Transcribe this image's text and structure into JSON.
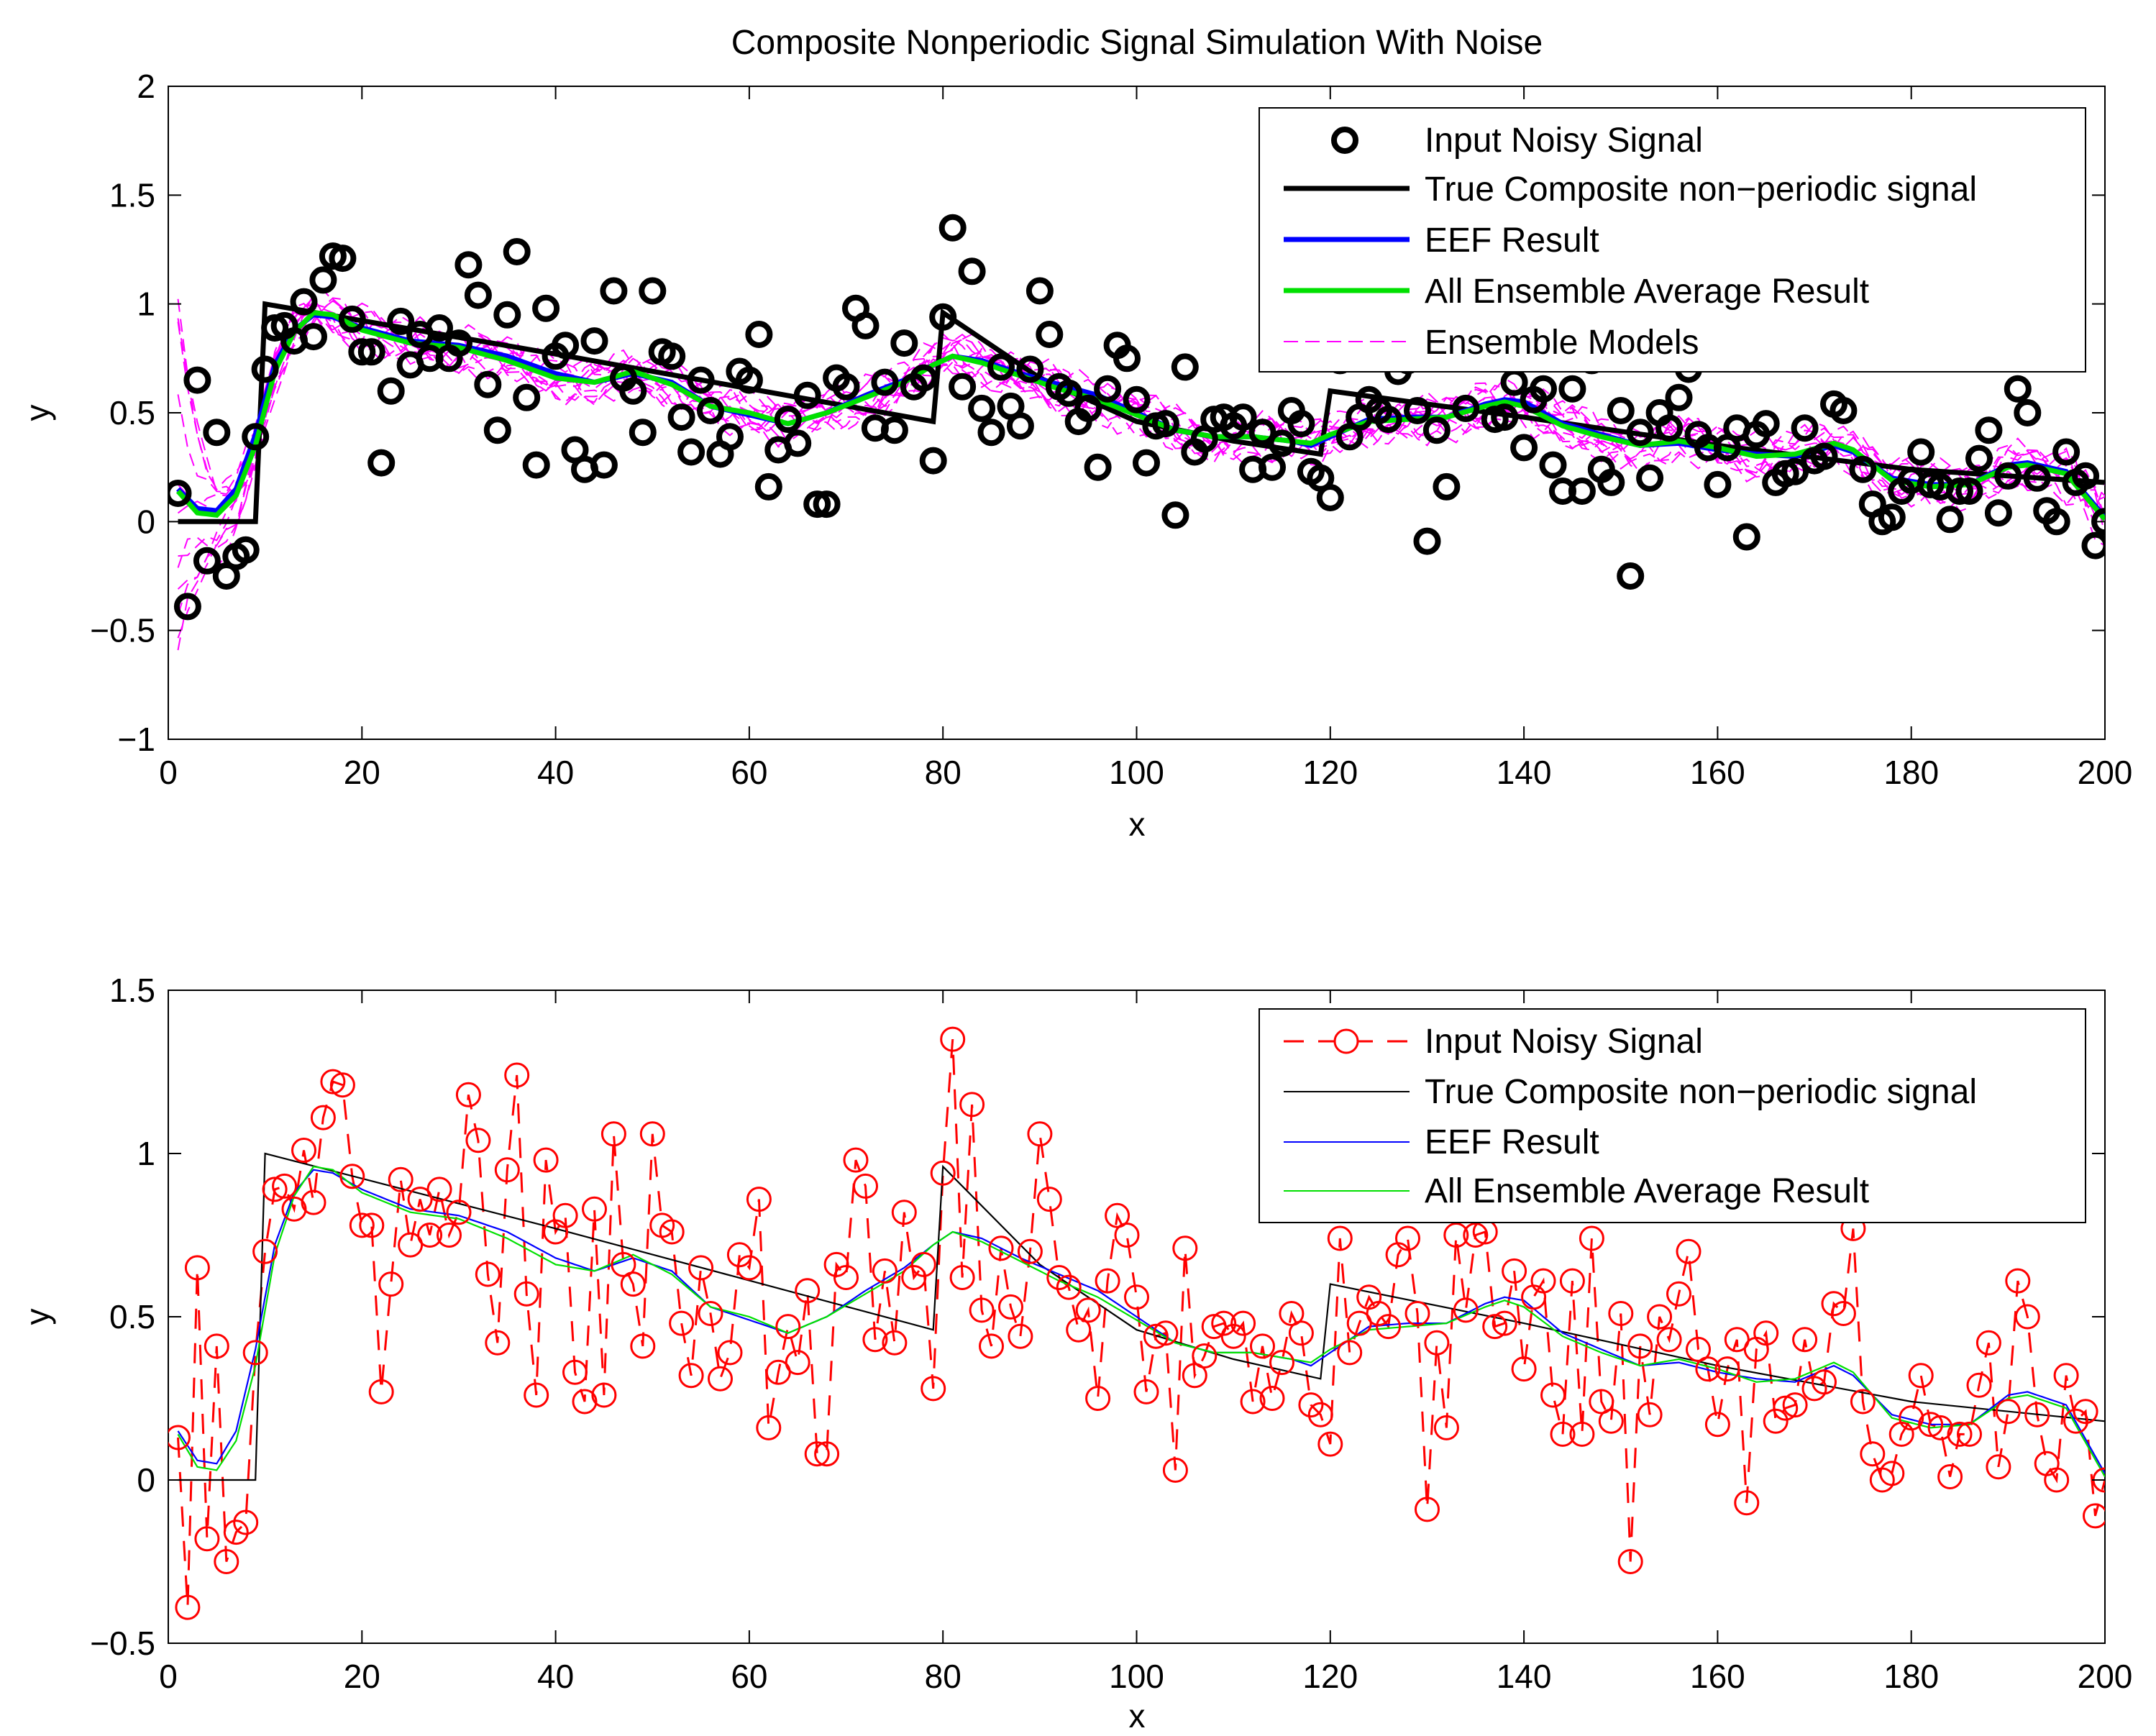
{
  "chart_data": [
    {
      "type": "line",
      "title": "Composite Nonperiodic Signal Simulation With Noise",
      "xlabel": "x",
      "ylabel": "y",
      "xlim": [
        0,
        200
      ],
      "ylim": [
        -1,
        2
      ],
      "xticks": [
        0,
        20,
        40,
        60,
        80,
        100,
        120,
        140,
        160,
        180,
        200
      ],
      "yticks": [
        -1,
        -0.5,
        0,
        0.5,
        1,
        1.5,
        2
      ],
      "ytick_labels": [
        "−1",
        "−0.5",
        "0",
        "0.5",
        "1",
        "1.5",
        "2"
      ],
      "grid": false,
      "legend_position": "top-right",
      "legend": [
        "Input Noisy Signal",
        "True Composite non−periodic signal",
        "EEF Result",
        "All Ensemble Average Result",
        "Ensemble Models"
      ],
      "series_styles": {
        "noisy": {
          "color": "#000000",
          "marker": "circle",
          "line": "none"
        },
        "true": {
          "color": "#000000",
          "width": "thick"
        },
        "eef": {
          "color": "#0000ff",
          "width": "thick"
        },
        "avg": {
          "color": "#00e000",
          "width": "thick"
        },
        "ensemble": {
          "color": "#ff00ff",
          "dash": "dashed",
          "count": 12
        }
      }
    },
    {
      "type": "line",
      "title": "",
      "xlabel": "x",
      "ylabel": "y",
      "xlim": [
        0,
        200
      ],
      "ylim": [
        -0.5,
        1.5
      ],
      "xticks": [
        0,
        20,
        40,
        60,
        80,
        100,
        120,
        140,
        160,
        180,
        200
      ],
      "yticks": [
        -0.5,
        0,
        0.5,
        1,
        1.5
      ],
      "ytick_labels": [
        "−0.5",
        "0",
        "0.5",
        "1",
        "1.5"
      ],
      "grid": false,
      "legend_position": "top-right",
      "legend": [
        "Input Noisy Signal",
        "True Composite non−periodic signal",
        "EEF Result",
        "All Ensemble Average Result"
      ],
      "series_styles": {
        "noisy": {
          "color": "#ff0000",
          "marker": "circle",
          "line": "dashed"
        },
        "true": {
          "color": "#000000",
          "width": "thin"
        },
        "eef": {
          "color": "#0000ff",
          "width": "thin"
        },
        "avg": {
          "color": "#00e000",
          "width": "thin"
        }
      }
    }
  ],
  "shared_data": {
    "x": [
      1,
      2,
      3,
      4,
      5,
      6,
      7,
      8,
      9,
      10,
      11,
      12,
      13,
      14,
      15,
      16,
      17,
      18,
      19,
      20,
      21,
      22,
      23,
      24,
      25,
      26,
      27,
      28,
      29,
      30,
      31,
      32,
      33,
      34,
      35,
      36,
      37,
      38,
      39,
      40,
      41,
      42,
      43,
      44,
      45,
      46,
      47,
      48,
      49,
      50,
      51,
      52,
      53,
      54,
      55,
      56,
      57,
      58,
      59,
      60,
      61,
      62,
      63,
      64,
      65,
      66,
      67,
      68,
      69,
      70,
      71,
      72,
      73,
      74,
      75,
      76,
      77,
      78,
      79,
      80,
      81,
      82,
      83,
      84,
      85,
      86,
      87,
      88,
      89,
      90,
      91,
      92,
      93,
      94,
      95,
      96,
      97,
      98,
      99,
      100,
      101,
      102,
      103,
      104,
      105,
      106,
      107,
      108,
      109,
      110,
      111,
      112,
      113,
      114,
      115,
      116,
      117,
      118,
      119,
      120,
      121,
      122,
      123,
      124,
      125,
      126,
      127,
      128,
      129,
      130,
      131,
      132,
      133,
      134,
      135,
      136,
      137,
      138,
      139,
      140,
      141,
      142,
      143,
      144,
      145,
      146,
      147,
      148,
      149,
      150,
      151,
      152,
      153,
      154,
      155,
      156,
      157,
      158,
      159,
      160,
      161,
      162,
      163,
      164,
      165,
      166,
      167,
      168,
      169,
      170,
      171,
      172,
      173,
      174,
      175,
      176,
      177,
      178,
      179,
      180,
      181,
      182,
      183,
      184,
      185,
      186,
      187,
      188,
      189,
      190,
      191,
      192,
      193,
      194,
      195,
      196,
      197,
      198,
      199,
      200
    ],
    "noisy": [
      0.13,
      -0.39,
      0.65,
      -0.18,
      0.41,
      -0.25,
      -0.16,
      -0.13,
      0.39,
      0.7,
      0.89,
      0.9,
      0.83,
      1.01,
      0.85,
      1.11,
      1.22,
      1.21,
      0.93,
      0.78,
      0.78,
      0.27,
      0.6,
      0.92,
      0.72,
      0.86,
      0.75,
      0.89,
      0.75,
      0.82,
      1.18,
      1.04,
      0.63,
      0.42,
      0.95,
      1.24,
      0.57,
      0.26,
      0.98,
      0.76,
      0.81,
      0.33,
      0.24,
      0.83,
      0.26,
      1.06,
      0.66,
      0.6,
      0.41,
      1.06,
      0.78,
      0.76,
      0.48,
      0.32,
      0.65,
      0.51,
      0.31,
      0.39,
      0.69,
      0.65,
      0.86,
      0.16,
      0.33,
      0.47,
      0.36,
      0.58,
      0.08,
      0.08,
      0.66,
      0.62,
      0.98,
      0.9,
      0.43,
      0.64,
      0.42,
      0.82,
      0.62,
      0.66,
      0.28,
      0.94,
      1.35,
      0.62,
      1.15,
      0.52,
      0.41,
      0.71,
      0.53,
      0.44,
      0.7,
      1.06,
      0.86,
      0.62,
      0.59,
      0.46,
      0.52,
      0.25,
      0.61,
      0.81,
      0.75,
      0.56,
      0.27,
      0.44,
      0.45,
      0.03,
      0.71,
      0.32,
      0.38,
      0.47,
      0.48,
      0.44,
      0.48,
      0.24,
      0.41,
      0.25,
      0.36,
      0.51,
      0.45,
      0.23,
      0.2,
      0.11,
      0.74,
      0.39,
      0.48,
      0.56,
      0.51,
      0.47,
      0.69,
      0.74,
      0.51,
      -0.09,
      0.42,
      0.16,
      0.75,
      0.52,
      0.75,
      0.76,
      0.47,
      0.48,
      0.64,
      0.34,
      0.56,
      0.61,
      0.26,
      0.14,
      0.61,
      0.14,
      0.74,
      0.24,
      0.18,
      0.51,
      -0.25,
      0.41,
      0.2,
      0.5,
      0.43,
      0.57,
      0.7,
      0.4,
      0.34,
      0.17,
      0.34,
      0.43,
      -0.07,
      0.4,
      0.45,
      0.18,
      0.22,
      0.23,
      0.43,
      0.28,
      0.3,
      0.54,
      0.51,
      0.77,
      0.24,
      0.08,
      0.0,
      0.02,
      0.14,
      0.19,
      0.32,
      0.17,
      0.16,
      0.01,
      0.14,
      0.14,
      0.29,
      0.42,
      0.04,
      0.21,
      0.61,
      0.5,
      0.2,
      0.05,
      0.0,
      0.32,
      0.18,
      0.21,
      -0.11,
      0.0
    ],
    "true_key": [
      [
        1,
        0
      ],
      [
        9,
        0
      ],
      [
        10,
        1
      ],
      [
        40,
        0.77
      ],
      [
        79,
        0.46
      ],
      [
        80,
        0.96
      ],
      [
        90,
        0.66
      ],
      [
        100,
        0.46
      ],
      [
        110,
        0.37
      ],
      [
        119,
        0.31
      ],
      [
        120,
        0.6
      ],
      [
        140,
        0.48
      ],
      [
        160,
        0.35
      ],
      [
        180,
        0.24
      ],
      [
        200,
        0.18
      ]
    ],
    "eef_key": [
      [
        1,
        0.15
      ],
      [
        3,
        0.06
      ],
      [
        5,
        0.05
      ],
      [
        7,
        0.15
      ],
      [
        9,
        0.4
      ],
      [
        11,
        0.72
      ],
      [
        13,
        0.88
      ],
      [
        15,
        0.95
      ],
      [
        17,
        0.94
      ],
      [
        20,
        0.89
      ],
      [
        25,
        0.83
      ],
      [
        30,
        0.81
      ],
      [
        35,
        0.76
      ],
      [
        40,
        0.68
      ],
      [
        44,
        0.64
      ],
      [
        48,
        0.68
      ],
      [
        52,
        0.64
      ],
      [
        56,
        0.53
      ],
      [
        60,
        0.49
      ],
      [
        64,
        0.45
      ],
      [
        68,
        0.5
      ],
      [
        72,
        0.58
      ],
      [
        76,
        0.65
      ],
      [
        79,
        0.72
      ],
      [
        81,
        0.76
      ],
      [
        84,
        0.74
      ],
      [
        88,
        0.68
      ],
      [
        92,
        0.63
      ],
      [
        96,
        0.58
      ],
      [
        100,
        0.5
      ],
      [
        104,
        0.42
      ],
      [
        108,
        0.39
      ],
      [
        112,
        0.39
      ],
      [
        116,
        0.37
      ],
      [
        118,
        0.35
      ],
      [
        120,
        0.39
      ],
      [
        124,
        0.47
      ],
      [
        128,
        0.48
      ],
      [
        132,
        0.48
      ],
      [
        136,
        0.54
      ],
      [
        138,
        0.56
      ],
      [
        140,
        0.55
      ],
      [
        144,
        0.45
      ],
      [
        148,
        0.4
      ],
      [
        152,
        0.35
      ],
      [
        156,
        0.36
      ],
      [
        160,
        0.33
      ],
      [
        164,
        0.31
      ],
      [
        168,
        0.3
      ],
      [
        172,
        0.35
      ],
      [
        174,
        0.32
      ],
      [
        178,
        0.2
      ],
      [
        182,
        0.17
      ],
      [
        186,
        0.17
      ],
      [
        190,
        0.26
      ],
      [
        192,
        0.27
      ],
      [
        196,
        0.23
      ],
      [
        200,
        0.02
      ]
    ],
    "avg_key": [
      [
        1,
        0.14
      ],
      [
        3,
        0.04
      ],
      [
        5,
        0.03
      ],
      [
        7,
        0.12
      ],
      [
        9,
        0.35
      ],
      [
        11,
        0.69
      ],
      [
        13,
        0.87
      ],
      [
        15,
        0.96
      ],
      [
        17,
        0.95
      ],
      [
        20,
        0.88
      ],
      [
        25,
        0.82
      ],
      [
        30,
        0.8
      ],
      [
        35,
        0.74
      ],
      [
        40,
        0.66
      ],
      [
        44,
        0.64
      ],
      [
        48,
        0.69
      ],
      [
        52,
        0.63
      ],
      [
        56,
        0.53
      ],
      [
        60,
        0.5
      ],
      [
        64,
        0.45
      ],
      [
        68,
        0.5
      ],
      [
        72,
        0.57
      ],
      [
        76,
        0.64
      ],
      [
        79,
        0.72
      ],
      [
        81,
        0.76
      ],
      [
        84,
        0.73
      ],
      [
        88,
        0.67
      ],
      [
        92,
        0.61
      ],
      [
        96,
        0.56
      ],
      [
        100,
        0.49
      ],
      [
        104,
        0.42
      ],
      [
        108,
        0.39
      ],
      [
        112,
        0.39
      ],
      [
        116,
        0.37
      ],
      [
        118,
        0.36
      ],
      [
        120,
        0.4
      ],
      [
        124,
        0.46
      ],
      [
        128,
        0.47
      ],
      [
        132,
        0.48
      ],
      [
        136,
        0.53
      ],
      [
        138,
        0.55
      ],
      [
        140,
        0.53
      ],
      [
        144,
        0.44
      ],
      [
        148,
        0.39
      ],
      [
        152,
        0.35
      ],
      [
        156,
        0.37
      ],
      [
        160,
        0.34
      ],
      [
        164,
        0.3
      ],
      [
        168,
        0.31
      ],
      [
        172,
        0.36
      ],
      [
        174,
        0.33
      ],
      [
        178,
        0.19
      ],
      [
        182,
        0.16
      ],
      [
        186,
        0.17
      ],
      [
        190,
        0.25
      ],
      [
        192,
        0.26
      ],
      [
        196,
        0.22
      ],
      [
        200,
        0.01
      ]
    ]
  }
}
